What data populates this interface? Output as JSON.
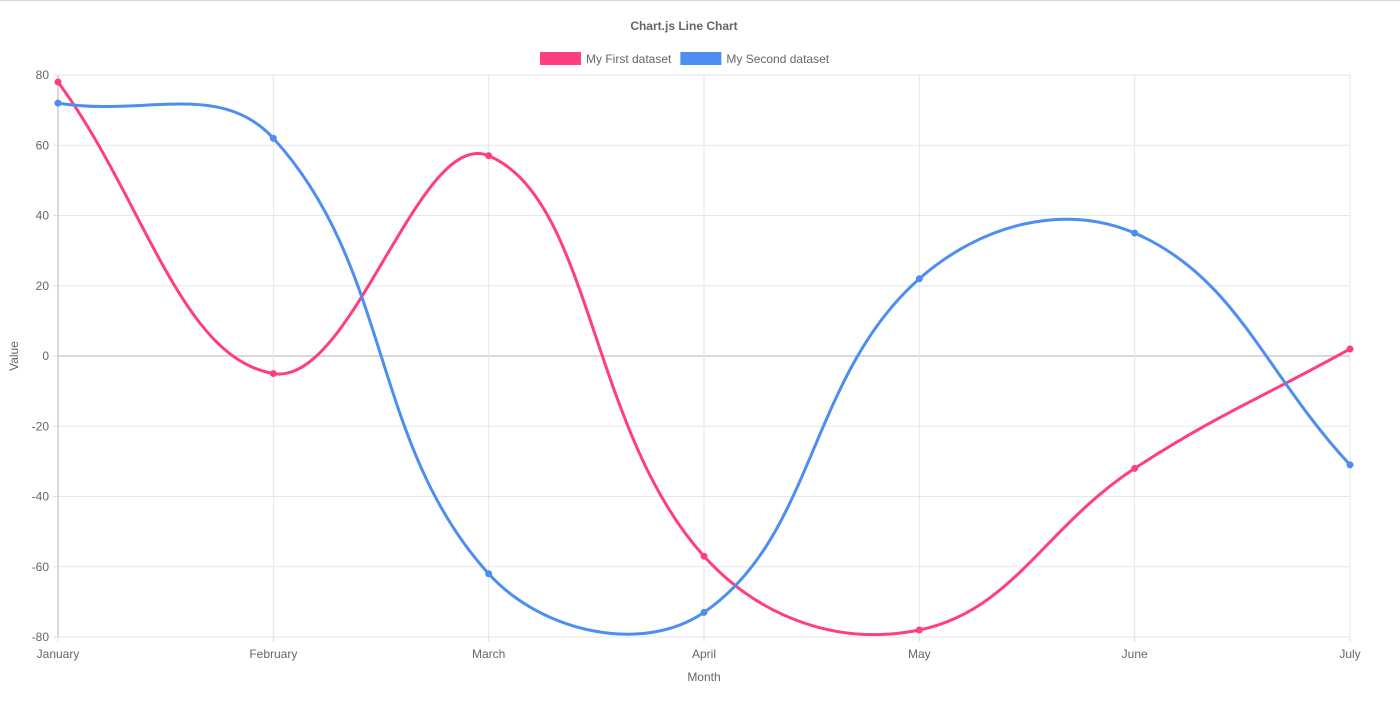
{
  "chart_data": {
    "type": "line",
    "title": "Chart.js Line Chart",
    "xlabel": "Month",
    "ylabel": "Value",
    "categories": [
      "January",
      "February",
      "March",
      "April",
      "May",
      "June",
      "July"
    ],
    "ylim": [
      -80,
      80
    ],
    "yticks": [
      80,
      60,
      40,
      20,
      0,
      -20,
      -40,
      -60,
      -80
    ],
    "grid": true,
    "legend_position": "top",
    "series": [
      {
        "name": "My First dataset",
        "color": "#ff3d7f",
        "values": [
          78,
          -5,
          57,
          -57,
          -78,
          -32,
          2
        ]
      },
      {
        "name": "My Second dataset",
        "color": "#4d8ef0",
        "values": [
          72,
          62,
          -62,
          -73,
          22,
          35,
          -31
        ]
      }
    ]
  }
}
